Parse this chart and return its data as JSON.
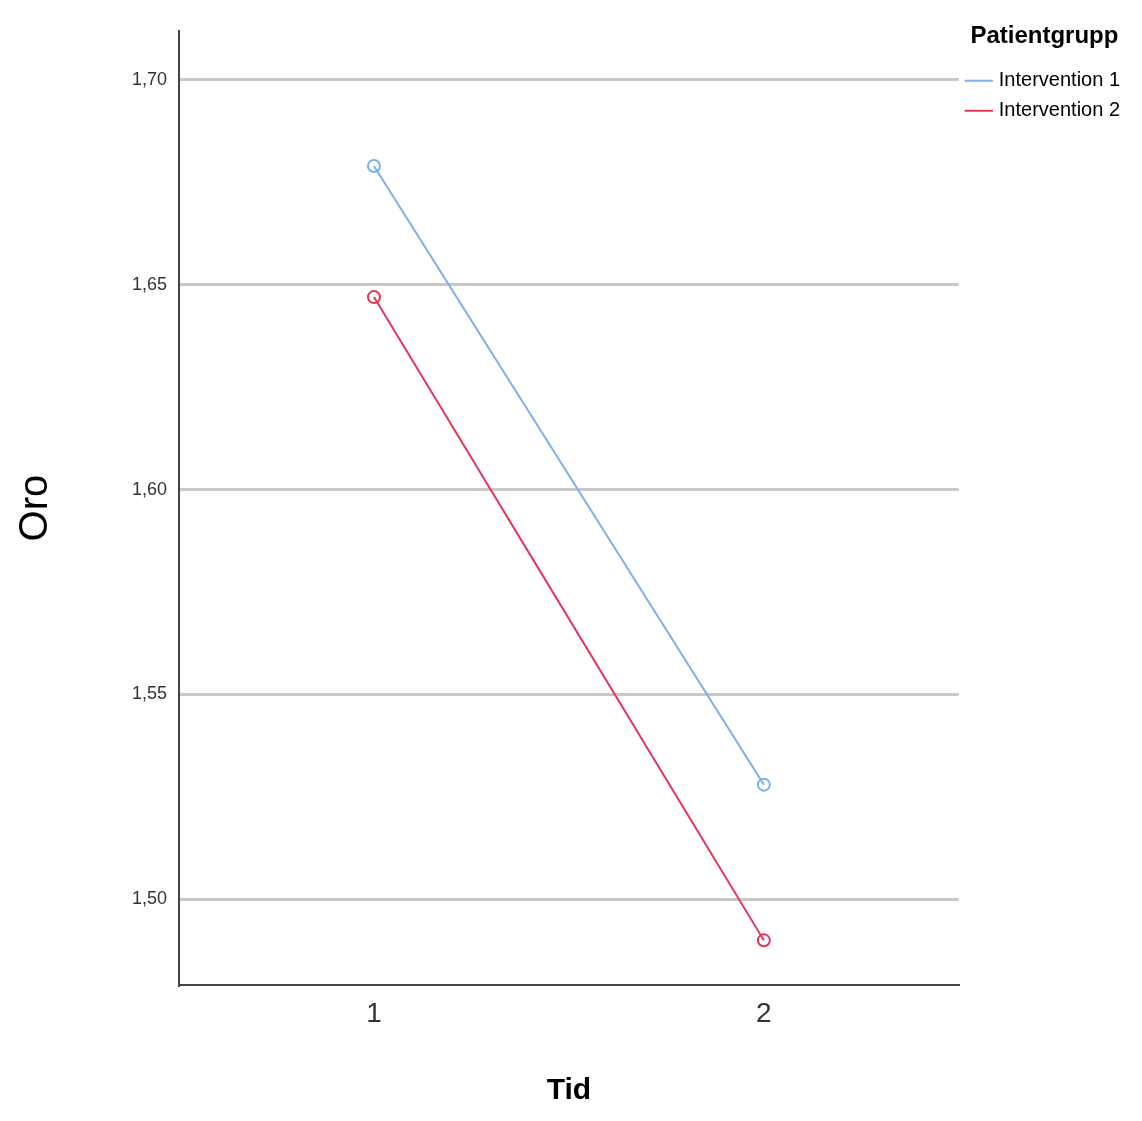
{
  "chart_data": {
    "type": "line",
    "xlabel": "Tid",
    "ylabel": "Oro",
    "legend_title": "Patientgrupp",
    "categories": [
      "1",
      "2"
    ],
    "series": [
      {
        "name": "Intervention 1",
        "color": "#7eb0ea",
        "values": [
          1.679,
          1.528
        ]
      },
      {
        "name": "Intervention 2",
        "color": "#e2355a",
        "values": [
          1.647,
          1.49
        ]
      }
    ],
    "ylim": [
      1.479,
      1.712
    ],
    "yticks": [
      {
        "value": 1.5,
        "label": "1,50"
      },
      {
        "value": 1.55,
        "label": "1,55"
      },
      {
        "value": 1.6,
        "label": "1,60"
      },
      {
        "value": 1.65,
        "label": "1,65"
      },
      {
        "value": 1.7,
        "label": "1,70"
      }
    ],
    "grid": "y",
    "legend": "top right",
    "marker": "circle",
    "line_style": "solid"
  }
}
